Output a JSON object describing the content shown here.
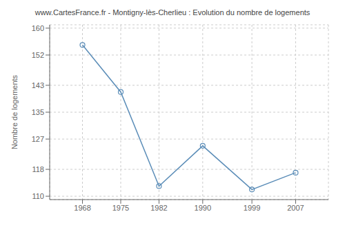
{
  "chart_data": {
    "type": "line",
    "title": "www.CartesFrance.fr - Montigny-lès-Cherlieu : Evolution du nombre de logements",
    "x": [
      1968,
      1975,
      1982,
      1990,
      1999,
      2007
    ],
    "values": [
      155,
      141,
      113,
      125,
      112,
      117
    ],
    "ylabel": "Nombre de logements",
    "xlim": [
      1962,
      2013
    ],
    "ylim": [
      109,
      161
    ],
    "xticks": [
      1968,
      1975,
      1982,
      1990,
      1999,
      2007
    ],
    "yticks": [
      110,
      118,
      127,
      135,
      143,
      152,
      160
    ],
    "color": "#5b8db8",
    "marker": "circle",
    "grid": true
  }
}
